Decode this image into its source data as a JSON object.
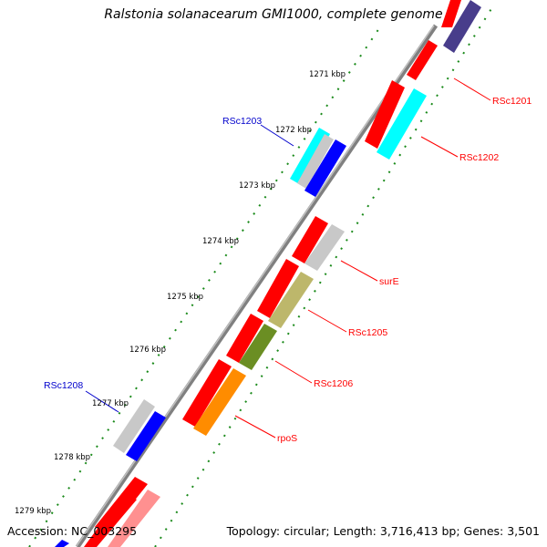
{
  "title": "Ralstonia solanacearum GMI1000, complete genome",
  "footer": {
    "accession": "Accession: NC_003295",
    "summary": "Topology: circular; Length: 3,716,413 bp; Genes: 3,501"
  },
  "ticks": [
    {
      "kbp": 1271,
      "label": "1271 kbp"
    },
    {
      "kbp": 1272,
      "label": "1272 kbp"
    },
    {
      "kbp": 1273,
      "label": "1273 kbp"
    },
    {
      "kbp": 1274,
      "label": "1274 kbp"
    },
    {
      "kbp": 1275,
      "label": "1275 kbp"
    },
    {
      "kbp": 1276,
      "label": "1276 kbp"
    },
    {
      "kbp": 1277,
      "label": "1277 kbp"
    },
    {
      "kbp": 1278,
      "label": "1278 kbp"
    },
    {
      "kbp": 1279,
      "label": "1279 kbp"
    }
  ],
  "gene_labels": [
    {
      "text": "RSc1201",
      "color": "#ff0000"
    },
    {
      "text": "RSc1202",
      "color": "#ff0000"
    },
    {
      "text": "RSc1203",
      "color": "#0000cc"
    },
    {
      "text": "surE",
      "color": "#ff0000"
    },
    {
      "text": "RSc1205",
      "color": "#ff0000"
    },
    {
      "text": "RSc1206",
      "color": "#ff0000"
    },
    {
      "text": "rpoS",
      "color": "#ff0000"
    },
    {
      "text": "RSc1208",
      "color": "#0000cc"
    }
  ],
  "colors": {
    "backbone": "#808080",
    "tick_dots": "#1a8a1a",
    "cds_red": "#ff0000",
    "cds_cyan": "#00ffff",
    "cds_blue": "#0000ff",
    "cds_gray": "#c8c8c8",
    "cds_khaki": "#bdb76b",
    "cds_olive": "#6b8e23",
    "cds_orange": "#ff8c00",
    "cds_slate": "#483d8b",
    "cds_pink": "#ff9090"
  }
}
